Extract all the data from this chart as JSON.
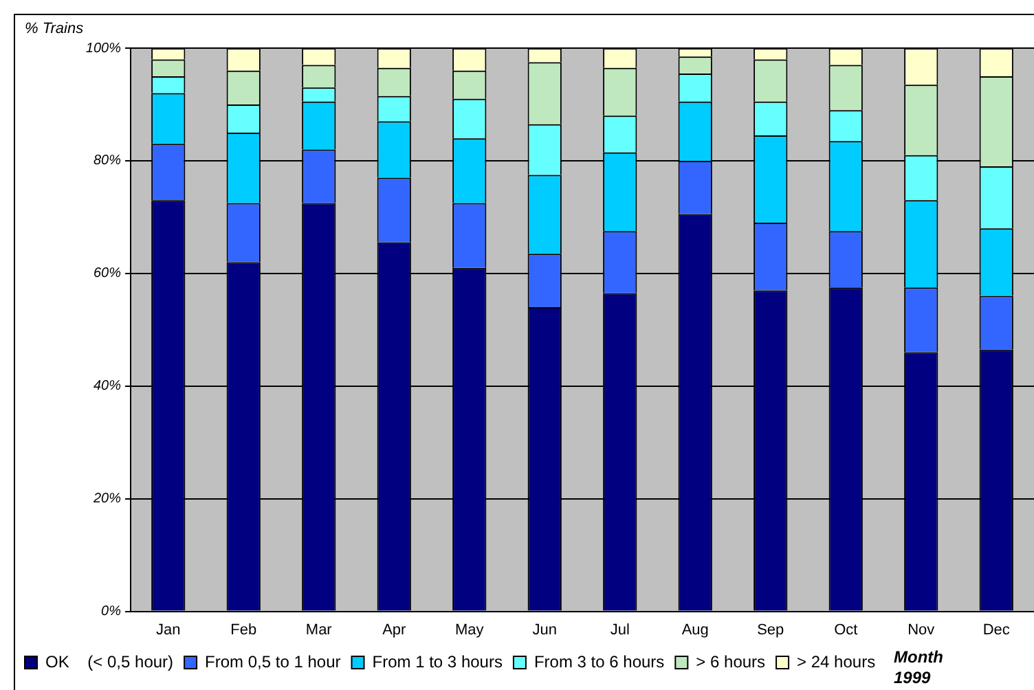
{
  "chart_data": {
    "type": "bar",
    "stacked": true,
    "ylabel": "% Trains",
    "xlabel": "Month 1999",
    "categories": [
      "Jan",
      "Feb",
      "Mar",
      "Apr",
      "May",
      "Jun",
      "Jul",
      "Aug",
      "Sep",
      "Oct",
      "Nov",
      "Dec"
    ],
    "series": [
      {
        "name": "OK    (< 0,5 hour)",
        "color": "#000080",
        "values": [
          73,
          62,
          72.5,
          65.5,
          61,
          54,
          56.5,
          70.5,
          57,
          57.5,
          46,
          46.5
        ]
      },
      {
        "name": "From 0,5 to 1 hour",
        "color": "#3366ff",
        "values": [
          10,
          10.5,
          9.5,
          11.5,
          11.5,
          9.5,
          11,
          9.5,
          12,
          10,
          11.5,
          9.5
        ]
      },
      {
        "name": "From 1 to 3 hours",
        "color": "#00ccff",
        "values": [
          9,
          12.5,
          8.5,
          10,
          11.5,
          14,
          14,
          10.5,
          15.5,
          16,
          15.5,
          12
        ]
      },
      {
        "name": "From 3 to 6 hours",
        "color": "#66ffff",
        "values": [
          3,
          5,
          2.5,
          4.5,
          7,
          9,
          6.5,
          5,
          6,
          5.5,
          8,
          11
        ]
      },
      {
        "name": "> 6 hours",
        "color": "#bfe8bf",
        "values": [
          3,
          6,
          4,
          5,
          5,
          11,
          8.5,
          3,
          7.5,
          8,
          12.5,
          16
        ]
      },
      {
        "name": "> 24 hours",
        "color": "#ffffcc",
        "values": [
          2,
          4,
          3,
          3.5,
          4,
          2.5,
          3.5,
          1.5,
          2,
          3,
          6.5,
          5
        ]
      }
    ],
    "ylim": [
      0,
      100
    ],
    "yticks": [
      {
        "value": 0,
        "label": "0%"
      },
      {
        "value": 20,
        "label": "20%"
      },
      {
        "value": 40,
        "label": "40%"
      },
      {
        "value": 60,
        "label": "60%"
      },
      {
        "value": 80,
        "label": "80%"
      },
      {
        "value": 100,
        "label": "100%"
      }
    ],
    "grid": "y",
    "legend": "bottom"
  }
}
